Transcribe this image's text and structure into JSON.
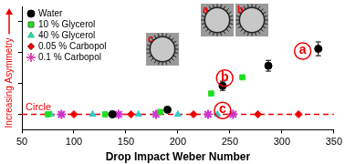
{
  "chart_data": {
    "type": "scatter",
    "x_label": "Drop Impact Weber Number",
    "y_label": "Increasing Asymmetry",
    "series": [
      {
        "name": "Water",
        "color": "#000000",
        "marker": "circle",
        "x": [
          137,
          190,
          243,
          287,
          335
        ],
        "values": [
          0,
          0.3,
          1.85,
          3.15,
          4.25
        ],
        "y_error": [
          0.1,
          0.1,
          0.3,
          0.35,
          0.45
        ]
      },
      {
        "name": "10 % Glycerol",
        "color": "#22dd22",
        "marker": "square",
        "x": [
          75,
          130,
          183,
          232,
          262
        ],
        "values": [
          0,
          0,
          0.15,
          1.35,
          2.4
        ]
      },
      {
        "name": "40 % Glycerol",
        "color": "#33cccc",
        "marker": "triangle",
        "x": [
          78,
          118,
          162,
          200,
          238
        ],
        "values": [
          0,
          0,
          0,
          0,
          0
        ]
      },
      {
        "name": "0.05 % Carbopol",
        "color": "#ee0000",
        "marker": "diamond",
        "x": [
          100,
          155,
          215,
          277,
          316
        ],
        "values": [
          0,
          0,
          0,
          0,
          0
        ]
      },
      {
        "name": "0.1 % Carbopol",
        "color": "#cc33cc",
        "marker": "star",
        "x": [
          88,
          143,
          179,
          229,
          253
        ],
        "values": [
          0,
          0,
          0,
          0,
          0
        ]
      }
    ],
    "xlim": [
      50,
      350
    ],
    "xticks": [
      50,
      100,
      150,
      200,
      250,
      300,
      350
    ],
    "ylim": [
      -1,
      7
    ],
    "yticks": [
      0,
      2,
      4,
      6
    ],
    "tick_labels": "x",
    "grid": false,
    "legend": "upper left",
    "reference_line": {
      "y": 0,
      "label": "Circle",
      "color": "#ee0000",
      "line_style": "dashed"
    },
    "annotations": [
      {
        "text": "a",
        "x": 320,
        "y": 4.1,
        "color": "#ee0000"
      },
      {
        "text": "b",
        "x": 245,
        "y": 2.35,
        "color": "#ee0000"
      },
      {
        "text": "c",
        "x": 243,
        "y": 0.25,
        "color": "#ee0000"
      }
    ],
    "insets": [
      {
        "label": "a"
      },
      {
        "label": "b"
      },
      {
        "label": "c"
      }
    ]
  }
}
